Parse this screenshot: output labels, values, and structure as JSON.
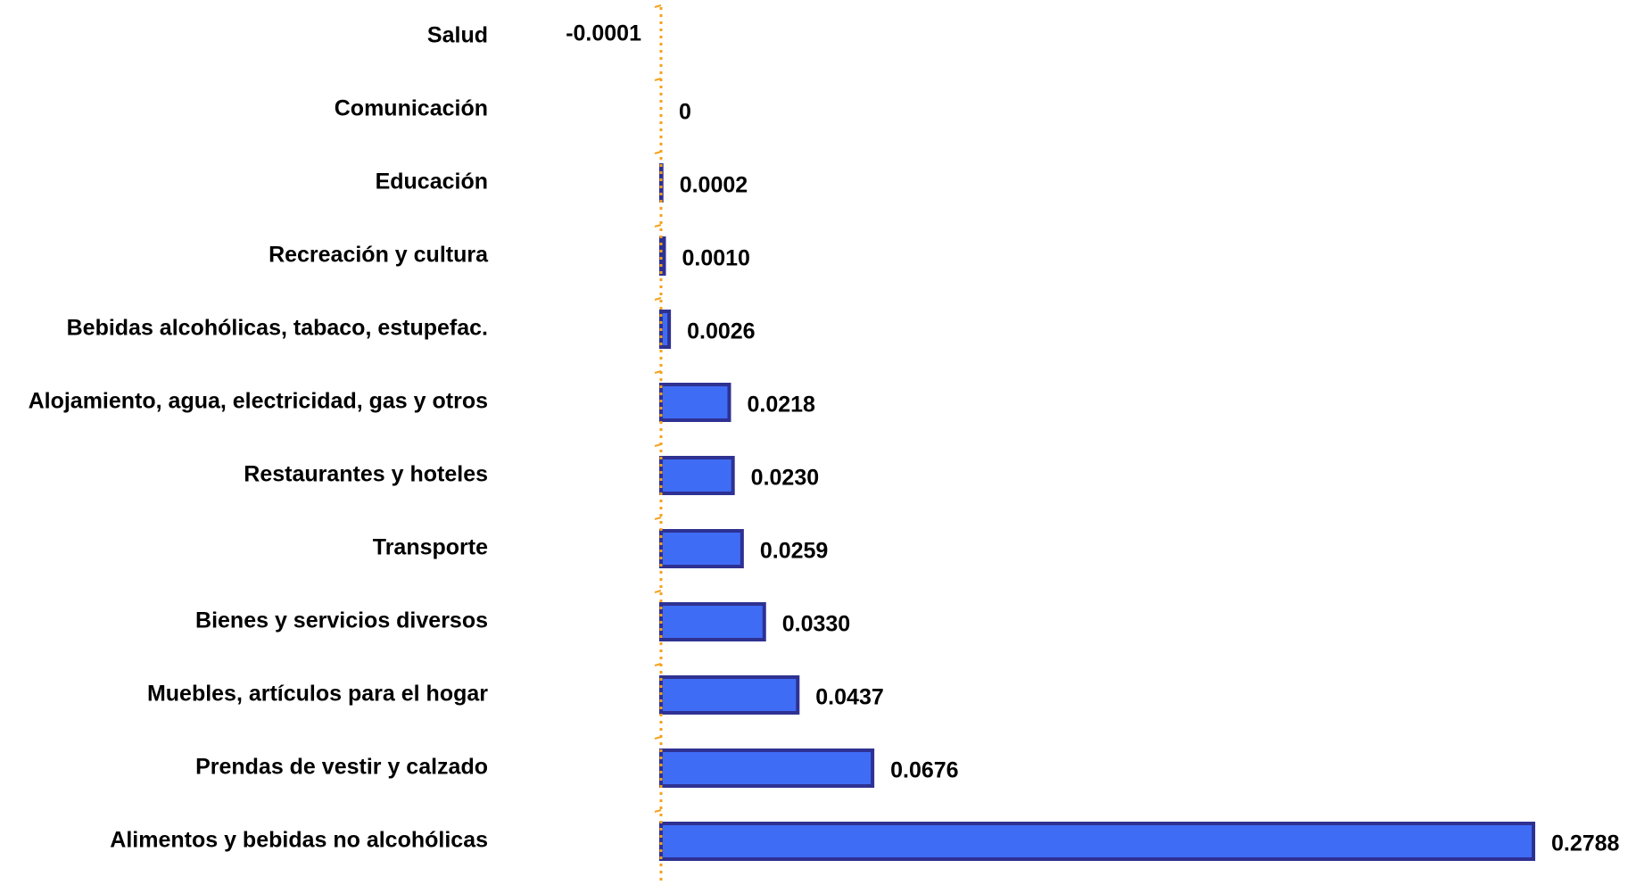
{
  "chart_data": {
    "type": "bar",
    "orientation": "horizontal",
    "categories": [
      "Salud",
      "Comunicación",
      "Educación",
      "Recreación y cultura",
      "Bebidas alcohólicas, tabaco, estupefac.",
      "Alojamiento, agua, electricidad, gas y otros",
      "Restaurantes y hoteles",
      "Transporte",
      "Bienes y servicios diversos",
      "Muebles, artículos para el hogar",
      "Prendas de vestir y calzado",
      "Alimentos y bebidas no alcohólicas"
    ],
    "values": [
      -0.0001,
      0,
      0.0002,
      0.001,
      0.0026,
      0.0218,
      0.023,
      0.0259,
      0.033,
      0.0437,
      0.0676,
      0.2788
    ],
    "value_labels": [
      "-0.0001",
      "0",
      "0.0002",
      "0.0010",
      "0.0026",
      "0.0218",
      "0.0230",
      "0.0259",
      "0.0330",
      "0.0437",
      "0.0676",
      "0.2788"
    ],
    "title": "",
    "xlabel": "",
    "ylabel": "",
    "xlim": [
      0,
      0.2788
    ],
    "grid": false,
    "legend": "none",
    "colors": {
      "bar_fill": "#3F6CF5",
      "bar_stroke": "#2E3192",
      "zero_line": "#F5A21C",
      "text": "#000000"
    }
  }
}
